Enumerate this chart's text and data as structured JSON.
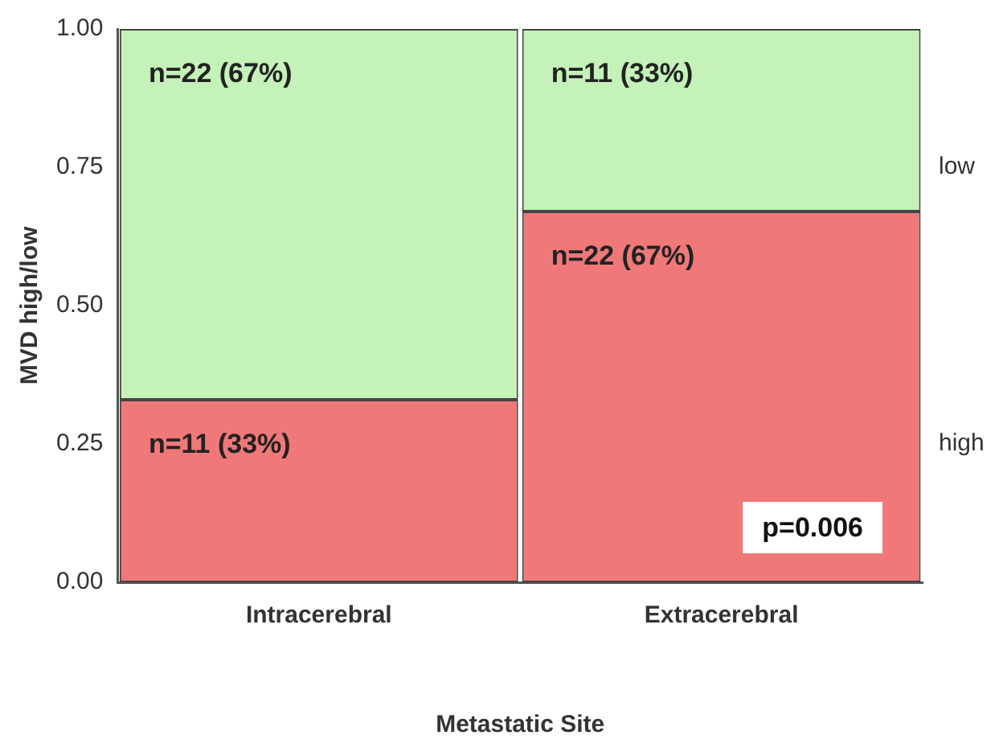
{
  "chart_data": {
    "type": "bar",
    "stacked": true,
    "xlabel": "Metastatic Site",
    "ylabel": "MVD high/low",
    "categories": [
      "Intracerebral",
      "Extracerebral"
    ],
    "series": [
      {
        "name": "high",
        "color": "#f07878",
        "values": [
          0.33,
          0.67
        ],
        "value_labels": [
          "n=11 (33%)",
          "n=22 (67%)"
        ]
      },
      {
        "name": "low",
        "color": "#c4f2b8",
        "values": [
          0.67,
          0.33
        ],
        "value_labels": [
          "n=22 (67%)",
          "n=11 (33%)"
        ]
      }
    ],
    "ylim": [
      0,
      1
    ],
    "yticks": [
      {
        "value": 0,
        "label": "0.00"
      },
      {
        "value": 0.25,
        "label": "0.25"
      },
      {
        "value": 0.5,
        "label": "0.50"
      },
      {
        "value": 0.75,
        "label": "0.75"
      },
      {
        "value": 1,
        "label": "1.00"
      }
    ],
    "annotations": [
      "p=0.006"
    ],
    "grid": false,
    "legend": false
  }
}
